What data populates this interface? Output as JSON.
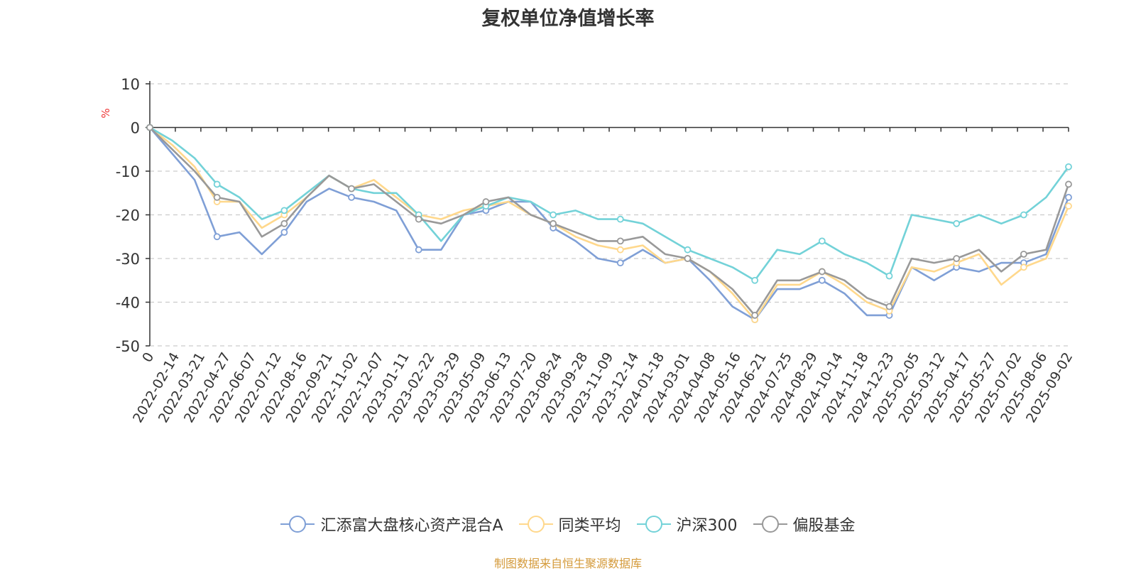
{
  "chart_data": {
    "type": "line",
    "title": "复权单位净值增长率",
    "ylabel": "%",
    "ylim": [
      -50,
      10
    ],
    "yticks": [
      "10",
      "0",
      "-10",
      "-20",
      "-30",
      "-40",
      "-50"
    ],
    "x_tick_labels": [
      "0",
      "2022-02-14",
      "2022-03-21",
      "2022-04-27",
      "2022-06-07",
      "2022-07-12",
      "2022-08-16",
      "2022-09-21",
      "2022-11-02",
      "2022-12-07",
      "2023-01-11",
      "2023-02-22",
      "2023-03-29",
      "2023-05-09",
      "2023-06-13",
      "2023-07-20",
      "2023-08-24",
      "2023-09-28",
      "2023-11-09",
      "2023-12-14",
      "2024-01-18",
      "2024-03-01",
      "2024-04-08",
      "2024-05-16",
      "2024-06-21",
      "2024-07-25",
      "2024-08-29",
      "2024-10-14",
      "2024-11-18",
      "2024-12-23",
      "2025-02-05",
      "2025-03-12",
      "2025-04-17",
      "2025-05-27",
      "2025-07-02",
      "2025-08-06",
      "2025-09-02"
    ],
    "grid": true,
    "legend_position": "bottom",
    "series": [
      {
        "name": "汇添富大盘核心资产混合A",
        "color": "#7f9fd6",
        "values": [
          0,
          -6,
          -12,
          -25,
          -24,
          -29,
          -24,
          -17,
          -14,
          -16,
          -17,
          -19,
          -28,
          -28,
          -20,
          -19,
          -17,
          -17,
          -23,
          -26,
          -30,
          -31,
          -28,
          -31,
          -30,
          -35,
          -41,
          -44,
          -37,
          -37,
          -35,
          -38,
          -43,
          -43,
          -32,
          -35,
          -32,
          -33,
          -31,
          -31,
          -29,
          -16
        ]
      },
      {
        "name": "同类平均",
        "color": "#ffd88c",
        "values": [
          0,
          -4,
          -9,
          -17,
          -17,
          -23,
          -20,
          -16,
          -11,
          -14,
          -12,
          -16,
          -20,
          -21,
          -19,
          -18,
          -17,
          -20,
          -22,
          -25,
          -27,
          -28,
          -27,
          -31,
          -30,
          -33,
          -38,
          -44,
          -36,
          -36,
          -33,
          -36,
          -40,
          -42,
          -32,
          -33,
          -31,
          -29,
          -36,
          -32,
          -30,
          -18
        ]
      },
      {
        "name": "沪深300",
        "color": "#73d2d8",
        "values": [
          0,
          -3,
          -7,
          -13,
          -16,
          -21,
          -19,
          -15,
          -11,
          -14,
          -15,
          -15,
          -20,
          -26,
          -20,
          -18,
          -16,
          -17,
          -20,
          -19,
          -21,
          -21,
          -22,
          -25,
          -28,
          -30,
          -32,
          -35,
          -28,
          -29,
          -26,
          -29,
          -31,
          -34,
          -20,
          -21,
          -22,
          -20,
          -22,
          -20,
          -16,
          -9
        ]
      },
      {
        "name": "偏股基金",
        "color": "#999999",
        "values": [
          0,
          -5,
          -10,
          -16,
          -17,
          -25,
          -22,
          -16,
          -11,
          -14,
          -13,
          -17,
          -21,
          -22,
          -20,
          -17,
          -16,
          -20,
          -22,
          -24,
          -26,
          -26,
          -25,
          -29,
          -30,
          -33,
          -37,
          -43,
          -35,
          -35,
          -33,
          -35,
          -39,
          -41,
          -30,
          -31,
          -30,
          -28,
          -33,
          -29,
          -28,
          -13
        ]
      }
    ]
  },
  "source_note": "制图数据来自恒生聚源数据库"
}
